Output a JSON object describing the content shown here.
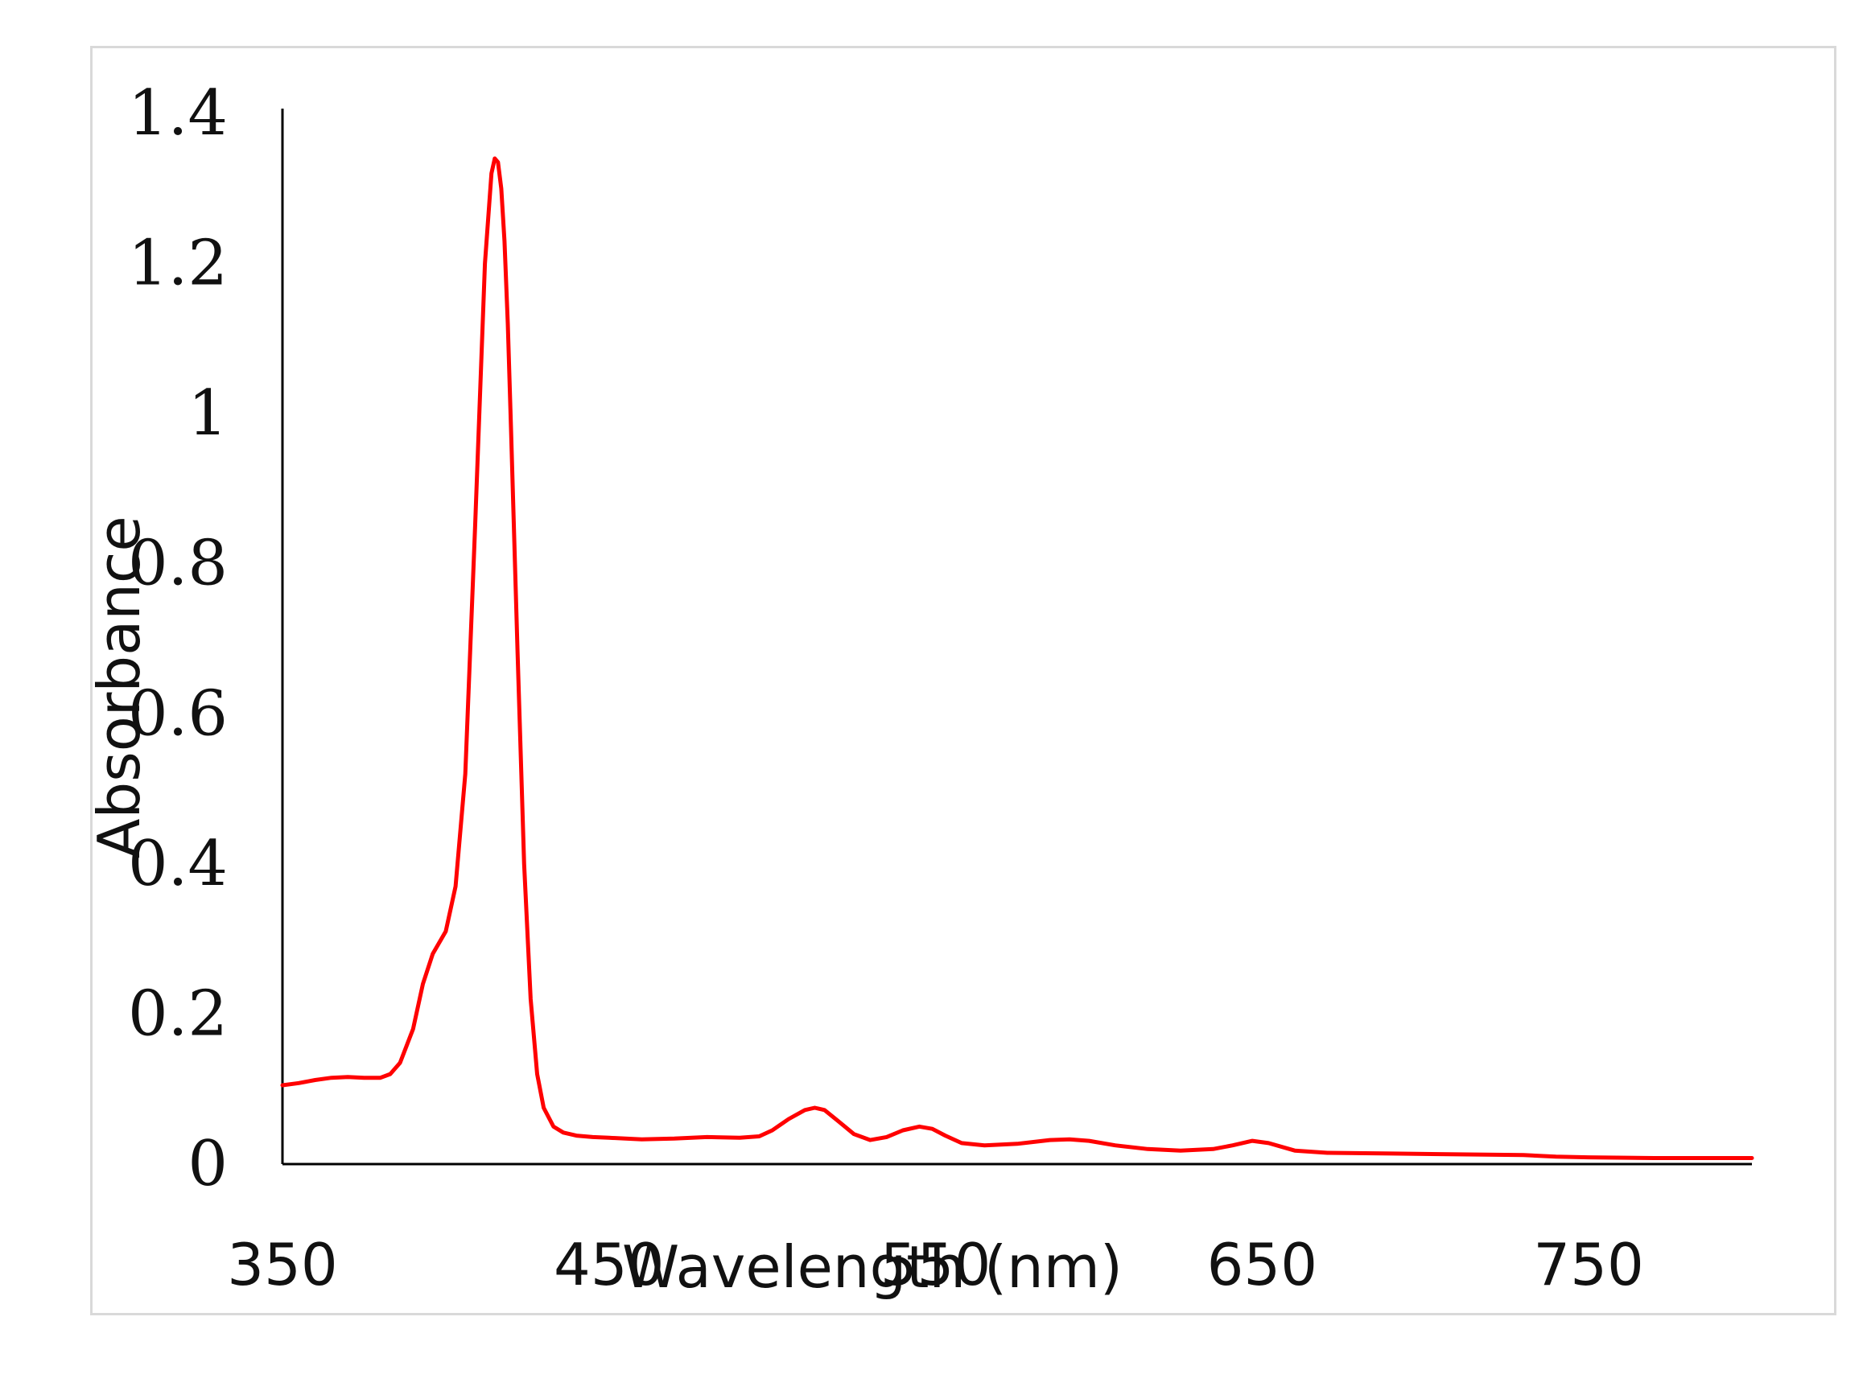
{
  "chart_data": {
    "type": "line",
    "title": "",
    "xlabel": "Wavelength (nm)",
    "ylabel": "Absorbance",
    "xlim": [
      350,
      800
    ],
    "ylim": [
      0,
      1.4
    ],
    "x_ticks": [
      "350",
      "450",
      "550",
      "650",
      "750"
    ],
    "y_ticks": [
      "0",
      "0.2",
      "0.4",
      "0.6",
      "0.8",
      "1",
      "1.2",
      "1.4"
    ],
    "grid": false,
    "legend": "none",
    "line_color": "#ff0000",
    "series": [
      {
        "x": [
          350,
          355,
          360,
          365,
          370,
          375,
          380,
          383,
          386,
          390,
          393,
          396,
          398,
          400,
          403,
          406,
          409,
          412,
          414,
          415,
          416,
          417,
          418,
          419,
          420,
          422,
          424,
          426,
          428,
          430,
          433,
          436,
          440,
          445,
          450,
          460,
          470,
          480,
          490,
          496,
          500,
          505,
          510,
          513,
          516,
          520,
          525,
          530,
          535,
          540,
          545,
          549,
          553,
          558,
          565,
          575,
          585,
          591,
          597,
          605,
          615,
          625,
          635,
          641,
          647,
          652,
          660,
          670,
          690,
          710,
          730,
          740,
          750,
          770,
          790,
          800
        ],
        "y": [
          0.105,
          0.108,
          0.112,
          0.115,
          0.116,
          0.115,
          0.115,
          0.12,
          0.135,
          0.18,
          0.24,
          0.28,
          0.295,
          0.31,
          0.37,
          0.52,
          0.85,
          1.2,
          1.32,
          1.34,
          1.335,
          1.3,
          1.23,
          1.12,
          0.98,
          0.68,
          0.4,
          0.22,
          0.12,
          0.075,
          0.05,
          0.042,
          0.038,
          0.036,
          0.035,
          0.033,
          0.034,
          0.036,
          0.035,
          0.037,
          0.045,
          0.06,
          0.072,
          0.075,
          0.072,
          0.058,
          0.04,
          0.032,
          0.036,
          0.045,
          0.05,
          0.047,
          0.038,
          0.028,
          0.025,
          0.027,
          0.032,
          0.033,
          0.031,
          0.025,
          0.02,
          0.018,
          0.02,
          0.025,
          0.031,
          0.028,
          0.018,
          0.015,
          0.014,
          0.013,
          0.012,
          0.01,
          0.009,
          0.008,
          0.008,
          0.008
        ]
      }
    ]
  }
}
